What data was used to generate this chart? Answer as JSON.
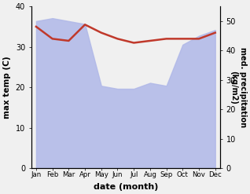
{
  "months": [
    "Jan",
    "Feb",
    "Mar",
    "Apr",
    "May",
    "Jun",
    "Jul",
    "Aug",
    "Sep",
    "Oct",
    "Nov",
    "Dec"
  ],
  "month_indices": [
    0,
    1,
    2,
    3,
    4,
    5,
    6,
    7,
    8,
    9,
    10,
    11
  ],
  "temp_left": [
    35,
    32,
    31.5,
    35.5,
    33.5,
    32,
    31,
    31.5,
    32,
    32,
    32,
    33.5
  ],
  "precip_right": [
    50,
    51,
    50,
    49,
    28,
    27,
    27,
    29,
    28,
    42,
    45,
    47
  ],
  "temp_color": "#c0392b",
  "rain_fill_color": "#b0b8e8",
  "xlabel": "date (month)",
  "ylabel_left": "max temp (C)",
  "ylabel_right": "med. precipitation\n(kg/m2)",
  "ylim_left": [
    0,
    40
  ],
  "ylim_right": [
    0,
    55
  ],
  "yticks_left": [
    0,
    10,
    20,
    30,
    40
  ],
  "yticks_right": [
    0,
    10,
    20,
    30,
    40,
    50
  ],
  "background_color": "#f0f0f0",
  "figsize": [
    3.18,
    2.47
  ],
  "dpi": 100
}
